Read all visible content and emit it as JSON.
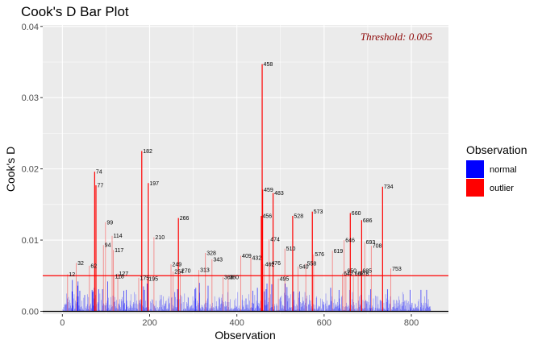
{
  "chart_data": {
    "type": "bar",
    "title": "Cook's D Bar Plot",
    "xlabel": "Observation",
    "ylabel": "Cook's D",
    "xlim": [
      -45,
      885
    ],
    "ylim": [
      -0.0004,
      0.0402
    ],
    "xticks": [
      0,
      200,
      400,
      600,
      800
    ],
    "yticks": [
      0.0,
      0.01,
      0.02,
      0.03,
      0.04
    ],
    "ytick_labels": [
      "0.00",
      "0.01",
      "0.02",
      "0.03",
      "0.04"
    ],
    "threshold": 0.005,
    "threshold_label": "Threshold: 0.005",
    "grid": true,
    "legend": {
      "title": "Observation",
      "position": "right",
      "entries": [
        {
          "label": "normal",
          "color": "#0000ff"
        },
        {
          "label": "outlier",
          "color": "#ff0000"
        }
      ]
    },
    "outliers": [
      {
        "x": 12,
        "y": 0.0052,
        "label": "12"
      },
      {
        "x": 32,
        "y": 0.0068,
        "label": "32"
      },
      {
        "x": 62,
        "y": 0.0064,
        "label": "62"
      },
      {
        "x": 74,
        "y": 0.0196,
        "label": "74"
      },
      {
        "x": 77,
        "y": 0.0177,
        "label": "77"
      },
      {
        "x": 94,
        "y": 0.0093,
        "label": "94"
      },
      {
        "x": 99,
        "y": 0.0125,
        "label": "99"
      },
      {
        "x": 114,
        "y": 0.0106,
        "label": "114"
      },
      {
        "x": 117,
        "y": 0.0086,
        "label": "117"
      },
      {
        "x": 118,
        "y": 0.0049,
        "label": "118"
      },
      {
        "x": 127,
        "y": 0.0053,
        "label": "127"
      },
      {
        "x": 182,
        "y": 0.0225,
        "label": "182"
      },
      {
        "x": 175,
        "y": 0.0047,
        "label": "175"
      },
      {
        "x": 195,
        "y": 0.0046,
        "label": "195"
      },
      {
        "x": 197,
        "y": 0.018,
        "label": "197"
      },
      {
        "x": 210,
        "y": 0.0104,
        "label": "210"
      },
      {
        "x": 249,
        "y": 0.0066,
        "label": "249"
      },
      {
        "x": 254,
        "y": 0.0056,
        "label": "254"
      },
      {
        "x": 266,
        "y": 0.0131,
        "label": "266"
      },
      {
        "x": 270,
        "y": 0.0057,
        "label": "270"
      },
      {
        "x": 313,
        "y": 0.0058,
        "label": "313"
      },
      {
        "x": 328,
        "y": 0.0082,
        "label": "328"
      },
      {
        "x": 343,
        "y": 0.0073,
        "label": "343"
      },
      {
        "x": 368,
        "y": 0.0048,
        "label": "368"
      },
      {
        "x": 380,
        "y": 0.0048,
        "label": "380"
      },
      {
        "x": 409,
        "y": 0.0078,
        "label": "409"
      },
      {
        "x": 432,
        "y": 0.0075,
        "label": "432"
      },
      {
        "x": 456,
        "y": 0.0134,
        "label": "456"
      },
      {
        "x": 458,
        "y": 0.0347,
        "label": "458"
      },
      {
        "x": 459,
        "y": 0.0171,
        "label": "459"
      },
      {
        "x": 462,
        "y": 0.0066,
        "label": "462"
      },
      {
        "x": 474,
        "y": 0.0101,
        "label": "474"
      },
      {
        "x": 476,
        "y": 0.0068,
        "label": "476"
      },
      {
        "x": 483,
        "y": 0.0166,
        "label": "483"
      },
      {
        "x": 495,
        "y": 0.0046,
        "label": "495"
      },
      {
        "x": 510,
        "y": 0.0088,
        "label": "510"
      },
      {
        "x": 528,
        "y": 0.0134,
        "label": "528"
      },
      {
        "x": 540,
        "y": 0.0063,
        "label": "540"
      },
      {
        "x": 558,
        "y": 0.0067,
        "label": "558"
      },
      {
        "x": 573,
        "y": 0.014,
        "label": "573"
      },
      {
        "x": 576,
        "y": 0.008,
        "label": "576"
      },
      {
        "x": 619,
        "y": 0.0085,
        "label": "619"
      },
      {
        "x": 642,
        "y": 0.0053,
        "label": "642"
      },
      {
        "x": 646,
        "y": 0.01,
        "label": "646"
      },
      {
        "x": 650,
        "y": 0.0057,
        "label": "650"
      },
      {
        "x": 660,
        "y": 0.0138,
        "label": "660"
      },
      {
        "x": 667,
        "y": 0.0053,
        "label": "667"
      },
      {
        "x": 678,
        "y": 0.0053,
        "label": "678"
      },
      {
        "x": 685,
        "y": 0.0057,
        "label": "685"
      },
      {
        "x": 686,
        "y": 0.0128,
        "label": "686"
      },
      {
        "x": 693,
        "y": 0.0097,
        "label": "693"
      },
      {
        "x": 708,
        "y": 0.0092,
        "label": "708"
      },
      {
        "x": 734,
        "y": 0.0175,
        "label": "734"
      },
      {
        "x": 753,
        "y": 0.006,
        "label": "753"
      }
    ],
    "normal_values": [
      0.0003,
      0.0002,
      0.0006,
      0.0001,
      0.0009,
      0.001,
      0.0011,
      0.0009,
      0.001,
      0.0025,
      0.0018,
      0.0013,
      0.002,
      0.0004,
      0.0005,
      0.0016,
      0.0012,
      0.0008,
      0.0003,
      0.0005,
      0.0028,
      0.0044,
      0.0008,
      0.0001,
      0.0018,
      0.0024,
      0.0003,
      0.0004,
      0.0015,
      0.0011,
      0.0013,
      0.0021,
      0.0036,
      0.0042,
      0.0021,
      0.0008,
      0.0003,
      0.0029,
      0.0003,
      0.0006,
      0.0002,
      0.0007,
      0.0015,
      0.0002,
      0.0004,
      0.0002,
      0.0019,
      0.0023,
      0.0001,
      0.0023,
      0.0001,
      0.0005,
      0.0007,
      0.0003,
      0.001,
      0.0024,
      0.0003,
      0.002,
      0.0007,
      0.0002,
      0.0009,
      0.0011,
      0.0005,
      0.0003,
      0.003,
      0.0027,
      0.0028,
      0.0008,
      0.0018,
      0.0033,
      0.0007,
      0.0023,
      0.001,
      0.0002,
      0.0,
      0.0013,
      0.0011,
      0.0031,
      0.0001,
      0.0002,
      0.0025,
      0.0001,
      0.0001,
      0.0016,
      0.0002,
      0.0001,
      0.0031,
      0.0008,
      0.0011,
      0.0001,
      0.0009,
      0.0008,
      0.0012,
      0.0009,
      0.0003,
      0.0015,
      0.0042,
      0.0005,
      0.0019,
      0.0002,
      0.0009,
      0.0002,
      0.0004,
      0.002,
      0.0009,
      0.0006,
      0.0007,
      0.0022,
      0.0013,
      0.002,
      0.0014,
      0.0007,
      0.0004,
      0.0016,
      0.0005,
      0.0003,
      0.0003,
      0.0011,
      0.001,
      0.0008,
      0.0017,
      0.0006,
      0.0003,
      0.0017,
      0.0014,
      0.002,
      0.0002,
      0.0015,
      0.0009,
      0.0029,
      0.0011,
      0.0012,
      0.0003,
      0.0002,
      0.003,
      0.0009,
      0.0015,
      0.0006,
      0.0001,
      0.0007,
      0.0004,
      0.0002,
      0.0005,
      0.0015,
      0.0009,
      0.0024,
      0.0005,
      0.0007,
      0.0002,
      0.0005,
      0.001,
      0.0013,
      0.0011,
      0.0027,
      0.0005,
      0.0001,
      0.0024,
      0.0011,
      0.0015,
      0.0004,
      0.0003,
      0.001,
      0.0001,
      0.0016,
      0.0012,
      0.0015,
      0.001,
      0.0017,
      0.0016,
      0.0002,
      0.0008,
      0.0006,
      0.0035,
      0.0001,
      0.003,
      0.0003,
      0.0005,
      0.0015,
      0.0005,
      0.0006,
      0.0039,
      0.0003,
      0.0006,
      0.0,
      0.0002,
      0.0003,
      0.0014,
      0.0003,
      0.0012,
      0.0017,
      0.0001,
      0.0016,
      0.0001,
      0.001,
      0.0007,
      0.0008,
      0.0004,
      0.0005,
      0.0015,
      0.0002,
      0.0001,
      0.0006,
      0.0,
      0.0004,
      0.0002,
      0.0006,
      0.0015,
      0.0023,
      0.0,
      0.0017,
      0.0006,
      0.0023,
      0.0009,
      0.0003,
      0.0021,
      0.0002,
      0.0007,
      0.0008,
      0.0011,
      0.0011,
      0.0014,
      0.0015,
      0.0003,
      0.0001,
      0.0004,
      0.0003,
      0.0018,
      0.0021,
      0.001,
      0.0012,
      0.0,
      0.0001,
      0.0019,
      0.002,
      0.0004,
      0.0009,
      0.0004,
      0.0007,
      0.0027,
      0.0027,
      0.002,
      0.0006,
      0.0004,
      0.0006,
      0.0017,
      0.0031,
      0.0016,
      0.0002,
      0.0001,
      0.0017,
      0.0023,
      0.0001,
      0.0011,
      0.0021,
      0.0001,
      0.0001,
      0.0013,
      0.0003,
      0.0001,
      0.0025,
      0.0004,
      0.0004,
      0.0003,
      0.0001,
      0.0013,
      0.0011,
      0.0007,
      0.002,
      0.0019,
      0.0002,
      0.0004,
      0.0006,
      0.0008,
      0.0007,
      0.0004,
      0.0008,
      0.0009,
      0.0004,
      0.0021,
      0.0005,
      0.0015,
      0.0003,
      0.0001,
      0.0031,
      0.0018,
      0.0033,
      0.0007,
      0.0003,
      0.0015,
      0.0002,
      0.0009,
      0.0012,
      0.004,
      0.0026,
      0.0005,
      0.0003,
      0.0002,
      0.0009,
      0.0006,
      0.0006,
      0.0008,
      0.0005,
      0.0001,
      0.0003,
      0.001,
      0.0012,
      0.0006,
      0.0015,
      0.0012,
      0.0004,
      0.0018,
      0.0036,
      0.0001,
      0.0001,
      0.0004,
      0.0002,
      0.001,
      0.0004,
      0.0005,
      0.0007,
      0.0012,
      0.0004,
      0.0006,
      0.0001,
      0.0005,
      0.0021,
      0.0002,
      0.0007,
      0.0001,
      0.0014,
      0.0007,
      0.0002,
      0.0004,
      0.0002,
      0.0007,
      0.0019,
      0.002,
      0.0017,
      0.0005,
      0.001,
      0.0011,
      0.0019,
      0.0015,
      0.0024,
      0.001,
      0.0013,
      0.0001,
      0.0007,
      0.0006,
      0.0014,
      0.0008,
      0.0007,
      0.0003,
      0.0013,
      0.0027,
      0.0006,
      0.0013,
      0.0002,
      0.0003,
      0.0017,
      0.0004,
      0.0001,
      0.0003,
      0.0005,
      0.0003,
      0.0001,
      0.0003,
      0.0004,
      0.0016,
      0.0004,
      0.0005,
      0.0008,
      0.0018,
      0.0007,
      0.0006,
      0.0003,
      0.0027,
      0.0001,
      0.0005,
      0.0004,
      0.0008,
      0.0002,
      0.0003,
      0.0003,
      0.0002,
      0.0016,
      0.0023,
      0.0008,
      0.0006,
      0.0002,
      0.0015,
      0.0003,
      0.0003,
      0.0018,
      0.0009,
      0.0018,
      0.0005,
      0.001,
      0.0009,
      0.0002,
      0.0024,
      0.0004,
      0.0015,
      0.0002,
      0.0005,
      0.0006,
      0.0005,
      0.0012,
      0.0005,
      0.0029,
      0.0011,
      0.0011,
      0.0002,
      0.0023,
      0.0004,
      0.0005,
      0.0001,
      0.0015,
      0.0007,
      0.0033,
      0.0009,
      0.0012,
      0.0007,
      0.0011,
      0.0004,
      0.0005,
      0.0015,
      0.0003,
      0.0003,
      0.0001,
      0.0002,
      0.0028,
      0.0009,
      0.0016,
      0.0008,
      0.0031,
      0.0009,
      0.0039,
      0.001,
      0.0002,
      0.0013,
      0.0019,
      0.0004,
      0.0024,
      0.0005,
      0.0006,
      0.0038,
      0.0006,
      0.001,
      0.0002,
      0.0003,
      0.0007,
      0.001,
      0.0001,
      0.0,
      0.0008,
      0.0011,
      0.0002,
      0.0001,
      0.0008,
      0.0002,
      0.0017,
      0.0002,
      0.0019,
      0.002,
      0.0014,
      0.0022,
      0.0003,
      0.0005,
      0.0009,
      0.0008,
      0.0003,
      0.0007,
      0.0026,
      0.0039,
      0.0023,
      0.0002,
      0.0001,
      0.0034,
      0.0014,
      0.0022,
      0.0003,
      0.0018,
      0.0019,
      0.0005,
      0.0006,
      0.0024,
      0.0005,
      0.0001,
      0.0006,
      0.0004,
      0.0013,
      0.0028,
      0.0008,
      0.0016,
      0.0002,
      0.0007,
      0.0002,
      0.0002,
      0.001,
      0.0008,
      0.0003,
      0.0026,
      0.0019,
      0.0003,
      0.0028,
      0.0002,
      0.0013,
      0.0006,
      0.0011,
      0.0007,
      0.0012,
      0.002,
      0.0015,
      0.0014,
      0.0004,
      0.0009,
      0.0027,
      0.0012,
      0.0018,
      0.0007,
      0.0022,
      0.0,
      0.0001,
      0.001,
      0.0009,
      0.0023,
      0.0016,
      0.001,
      0.0015,
      0.0004,
      0.0007,
      0.0,
      0.0004,
      0.001,
      0.0004,
      0.0003,
      0.0009,
      0.0003,
      0.0001,
      0.0019,
      0.0021,
      0.0004,
      0.0002,
      0.0004,
      0.0008,
      0.0006,
      0.0007,
      0.0007,
      0.0,
      0.0018,
      0.0002,
      0.0004,
      0.0001,
      0.0017,
      0.0014,
      0.001,
      0.0013,
      0.0009,
      0.0,
      0.0001,
      0.0011,
      0.0025,
      0.0003,
      0.0007,
      0.0015,
      0.0004,
      0.0001,
      0.0009,
      0.0008,
      0.0009,
      0.0009,
      0.0001,
      0.0033,
      0.0015,
      0.0014,
      0.0021,
      0.0004,
      0.0012,
      0.0003,
      0.0004,
      0.0017,
      0.0006,
      0.0008,
      0.0011,
      0.0009,
      0.0006,
      0.0007,
      0.0013,
      0.0008,
      0.0004,
      0.003,
      0.0018,
      0.0005,
      0.001,
      0.0003,
      0.0001,
      0.002,
      0.0022,
      0.0007,
      0.0002,
      0.0002,
      0.0006,
      0.0002,
      0.0007,
      0.0012,
      0.0007,
      0.0006,
      0.0001,
      0.0009,
      0.0002,
      0.0007,
      0.0004,
      0.003,
      0.0001,
      0.0009,
      0.0003,
      0.0017,
      0.0027,
      0.0007,
      0.0013,
      0.0009,
      0.0003,
      0.0004,
      0.0001,
      0.0012,
      0.0001,
      0.0004,
      0.0001,
      0.0004,
      0.0015,
      0.0006,
      0.0021,
      0.001,
      0.0008,
      0.0023,
      0.0004,
      0.0004,
      0.0016,
      0.0003,
      0.0004,
      0.0014,
      0.0005,
      0.0015,
      0.0016,
      0.0014,
      0.0011,
      0.0014,
      0.0004,
      0.0001,
      0.0013,
      0.0023,
      0.0005,
      0.0009,
      0.0004,
      0.0031,
      0.0005,
      0.0008,
      0.0004,
      0.0006,
      0.0018,
      0.0,
      0.0,
      0.0002,
      0.0005,
      0.0022,
      0.0,
      0.0021,
      0.0005,
      0.0003,
      0.0021,
      0.001,
      0.0004,
      0.0002,
      0.0004,
      0.0016,
      0.0016,
      0.0014,
      0.0003,
      0.0015,
      0.0002,
      0.0006,
      0.0004,
      0.0012,
      0.0003,
      0.0004,
      0.0002,
      0.0024,
      0.0002,
      0.0013,
      0.0018,
      0.0031,
      0.0002,
      0.0005,
      0.0016,
      0.0001,
      0.0011,
      0.001,
      0.0021,
      0.0001,
      0.0003,
      0.0002,
      0.0006,
      0.0006,
      0.0016,
      0.0007,
      0.0016,
      0.0004,
      0.0011,
      0.0003,
      0.0005,
      0.0016,
      0.0015,
      0.0005,
      0.0007,
      0.0012,
      0.0021,
      0.0001,
      0.0016,
      0.0009,
      0.0003,
      0.0011,
      0.0002,
      0.0007,
      0.0013,
      0.0027,
      0.0008,
      0.0024,
      0.0013,
      0.0015,
      0.0003,
      0.0008,
      0.0015,
      0.0003,
      0.0016,
      0.0001,
      0.0012,
      0.0001,
      0.0014,
      0.0002,
      0.0001,
      0.001,
      0.003,
      0.0006,
      0.0004,
      0.0009,
      0.0012,
      0.0012,
      0.0002,
      0.0004,
      0.0005,
      0.0004,
      0.0002,
      0.0011,
      0.0004,
      0.001,
      0.0005,
      0.0006,
      0.0004,
      0.0007,
      0.0004,
      0.0014,
      0.0017,
      0.0003,
      0.0001,
      0.0,
      0.0006,
      0.003,
      0.0012,
      0.0003,
      0.0009,
      0.0001,
      0.0005,
      0.0012,
      0.0008,
      0.0021,
      0.0001,
      0.0004,
      0.0012,
      0.0001,
      0.003,
      0.0006,
      0.001,
      0.0007,
      0.0017,
      0.0005,
      0.0006,
      0.0007,
      0.0007,
      0.0003,
      0.0016,
      0.0015,
      0.001,
      0.0019,
      0.0039,
      0.002,
      0.0007,
      0.0004,
      0.0018,
      0.0021,
      0.0009,
      0.0003,
      0.0016,
      0.0,
      0.0003,
      0.0002,
      0.0003,
      0.0009,
      0.0006,
      0.0011,
      0.0013,
      0.0016,
      0.0025,
      0.0008,
      0.0013,
      0.0013,
      0.0,
      0.0002,
      0.0008,
      0.0001,
      0.001,
      0.0005,
      0.0003,
      0.0009,
      0.0008,
      0.0005,
      0.0016,
      0.0005,
      0.0006,
      0.0008,
      0.0004,
      0.0004,
      0.0003,
      0.0004,
      0.0003,
      0.0002,
      0.0005,
      0.0002,
      0.0003,
      0.0003,
      0.0001,
      0.0002,
      0.0035,
      0.0008,
      0.0011,
      0.0001,
      0.0003,
      0.001,
      0.0009,
      0.0016,
      0.0004,
      0.0019,
      0.0024,
      0.0007,
      0.0004,
      0.0011,
      0.0,
      0.002,
      0.0003,
      0.0001,
      0.0001,
      0.0017,
      0.0002,
      0.0009,
      0.0002,
      0.0014,
      0.0002,
      0.0006,
      0.0008,
      0.0006,
      0.001,
      0.0006,
      0.0011,
      0.0003,
      0.0015,
      0.0019,
      0.0004,
      0.0007,
      0.0016,
      0.0005,
      0.0001,
      0.0001,
      0.0001,
      0.0001,
      0.0002,
      0.0006,
      0.0001,
      0.0005,
      0.0007,
      0.0003,
      0.0006,
      0.0002,
      0.0014,
      0.0014,
      0.0007,
      0.0004,
      0.0005,
      0.0003,
      0.0002,
      0.0008,
      0.0005,
      0.0005,
      0.0003,
      0.0003,
      0.0002,
      0.0005,
      0.0009,
      0.0011,
      0.0005,
      0.0001,
      0.0013,
      0.0004,
      0.0005,
      0.0004,
      0.0004,
      0.0008,
      0.0022,
      0.001,
      0.0007,
      0.0009,
      0.0001,
      0.0004,
      0.0001,
      0.0003,
      0.0005,
      0.0003,
      0.0004,
      0.0019,
      0.0009,
      0.0004,
      0.0007,
      0.0003,
      0.0006,
      0.0014,
      0.0015,
      0.0002,
      0.0001,
      0.0005,
      0.0016,
      0.0001,
      0.0001,
      0.0004,
      0.0005,
      0.0,
      0.0001,
      0.0003,
      0.0002,
      0.0001,
      0.0001,
      0.0,
      0.0001,
      0.0001,
      0.0001,
      0.0,
      0.0,
      0.0001,
      0.0001,
      0.0,
      0.0001,
      0.0,
      0.0,
      0.0001,
      0.0,
      0.0001,
      0.0,
      0.0,
      0.0,
      0.0001,
      0.0,
      0.0,
      0.0,
      0.0,
      0.0001,
      0.0
    ]
  }
}
